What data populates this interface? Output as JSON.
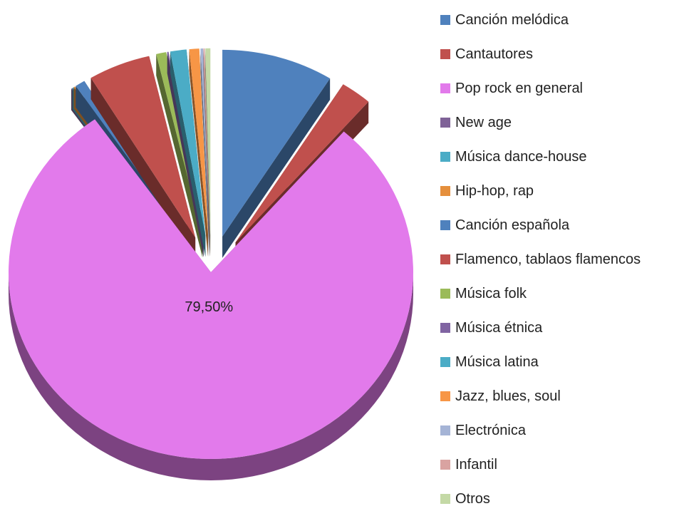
{
  "chart_data": {
    "type": "pie",
    "style": "3d-exploded",
    "categories": [
      "Canción melódica",
      "Cantautores",
      "Pop rock en general",
      "New age",
      "Música dance-house",
      "Hip-hop, rap",
      "Canción española",
      "Flamenco, tablaos flamencos",
      "Música folk",
      "Música étnica",
      "Música latina",
      "Jazz, blues, soul",
      "Electrónica",
      "Infantil",
      "Otros"
    ],
    "values": [
      9.0,
      2.5,
      79.5,
      0.1,
      0.1,
      0.1,
      0.8,
      5.0,
      0.8,
      0.1,
      1.3,
      0.8,
      0.2,
      0.1,
      0.4
    ],
    "colors": [
      "#4F81BD",
      "#C0504D",
      "#E27AEB",
      "#7F6297",
      "#4BACC6",
      "#E58F3C",
      "#4F81BD",
      "#C0504D",
      "#9BBB59",
      "#8064A2",
      "#4BACC6",
      "#F79646",
      "#A5B4D6",
      "#D9A3A1",
      "#C4D9A6"
    ],
    "data_labels": [
      {
        "category": "Pop rock en general",
        "text": "79,50%"
      }
    ],
    "legend_position": "right"
  }
}
